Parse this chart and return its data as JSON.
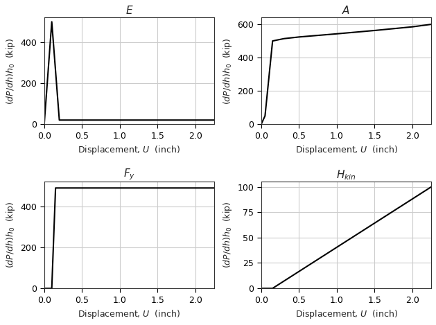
{
  "figsize": [
    6.29,
    4.69
  ],
  "dpi": 100,
  "line_color": "black",
  "line_width": 1.5,
  "grid_color": "#cccccc",
  "grid_linewidth": 0.8,
  "background_color": "white",
  "spine_color": "#333333",
  "tick_labelsize": 9,
  "label_fontsize": 9,
  "title_fontsize": 11,
  "subplots": [
    {
      "title": "$E$",
      "xlabel": "Displacement, $U$  (inch)",
      "ylabel": "$(dP/dh)h_0$  (kip)",
      "xlim": [
        0,
        2.25
      ],
      "ylim": [
        0,
        520
      ],
      "yticks": [
        0,
        200,
        400
      ],
      "xticks": [
        0.0,
        0.5,
        1.0,
        1.5,
        2.0
      ],
      "x": [
        0.0,
        0.1,
        0.2,
        2.25
      ],
      "y": [
        0.0,
        500,
        20,
        20
      ]
    },
    {
      "title": "$A$",
      "xlabel": "Displacement, $U$  (inch)",
      "ylabel": "$(dP/dh)h_0$  (kip)",
      "xlim": [
        0,
        2.25
      ],
      "ylim": [
        0,
        640
      ],
      "yticks": [
        0,
        200,
        400,
        600
      ],
      "xticks": [
        0.0,
        0.5,
        1.0,
        1.5,
        2.0
      ],
      "x": [
        0.0,
        0.05,
        0.15,
        0.3,
        0.5,
        1.0,
        1.5,
        2.0,
        2.25
      ],
      "y": [
        0.0,
        50,
        500,
        514,
        524,
        543,
        563,
        585,
        600
      ]
    },
    {
      "title": "$F_y$",
      "xlabel": "Displacement, $U$  (inch)",
      "ylabel": "$(dP/dh)h_0$  (kip)",
      "xlim": [
        0,
        2.25
      ],
      "ylim": [
        0,
        520
      ],
      "yticks": [
        0,
        200,
        400
      ],
      "xticks": [
        0.0,
        0.5,
        1.0,
        1.5,
        2.0
      ],
      "x": [
        0.0,
        0.1,
        0.15,
        0.2,
        2.25
      ],
      "y": [
        0.0,
        0.0,
        490,
        490,
        490
      ]
    },
    {
      "title": "$H_{kin}$",
      "xlabel": "Displacement, $U$  (inch)",
      "ylabel": "$(dP/dh)h_0$  (kip)",
      "xlim": [
        0,
        2.25
      ],
      "ylim": [
        0,
        105
      ],
      "yticks": [
        0,
        25,
        50,
        75,
        100
      ],
      "xticks": [
        0.0,
        0.5,
        1.0,
        1.5,
        2.0
      ],
      "x": [
        0.0,
        0.15,
        2.25
      ],
      "y": [
        0.0,
        0.0,
        100
      ]
    }
  ]
}
